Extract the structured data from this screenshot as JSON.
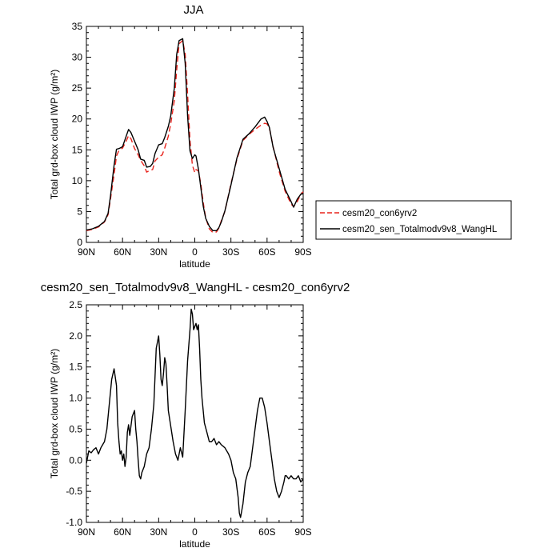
{
  "chart_data": [
    {
      "type": "line",
      "title": "JJA",
      "xlabel": "latitude",
      "ylabel": "Total grd-box cloud IWP (g/m²)",
      "ylim": [
        0,
        35
      ],
      "xlim": [
        90,
        -90
      ],
      "x_ticks": [
        90,
        60,
        30,
        0,
        -30,
        -60,
        -90
      ],
      "x_tick_labels": [
        "90N",
        "60N",
        "30N",
        "0",
        "30S",
        "60S",
        "90S"
      ],
      "y_ticks": [
        0,
        5,
        10,
        15,
        20,
        25,
        30,
        35
      ],
      "y_tick_labels": [
        "0",
        "5",
        "10",
        "15",
        "20",
        "25",
        "30",
        "35"
      ],
      "legend_position": "right",
      "grid": false,
      "series": [
        {
          "name": "cesm20_con6yrv2",
          "color": "#e8231c",
          "dash": "dashed",
          "x": [
            90,
            85,
            80,
            75,
            72,
            70,
            67,
            65,
            63,
            60,
            57,
            55,
            53,
            50,
            47,
            45,
            42,
            40,
            37,
            35,
            33,
            30,
            27,
            25,
            22,
            20,
            17,
            15,
            13,
            10,
            8,
            6,
            4,
            2,
            0,
            -1,
            -3,
            -5,
            -7,
            -9,
            -12,
            -15,
            -18,
            -20,
            -22,
            -25,
            -30,
            -35,
            -40,
            -45,
            -50,
            -55,
            -58,
            -60,
            -62,
            -65,
            -70,
            -75,
            -80,
            -82,
            -85,
            -88,
            -90
          ],
          "y": [
            1.9,
            2.1,
            2.5,
            3.3,
            4.5,
            7,
            11,
            14,
            14.9,
            15.3,
            16.4,
            17.3,
            16.8,
            15.2,
            14.2,
            13.3,
            12.4,
            11.4,
            11.7,
            11.8,
            13.2,
            13.8,
            14.2,
            15.3,
            17.2,
            19.2,
            23,
            28,
            32.2,
            32.7,
            30.5,
            24,
            16.5,
            12.5,
            11.3,
            11.8,
            11.6,
            9.5,
            6.5,
            4,
            2.2,
            1.6,
            1.7,
            2.3,
            3.5,
            5,
            9.5,
            13.5,
            16.5,
            17.5,
            18.3,
            19,
            19.3,
            19.2,
            18.5,
            15.5,
            11.5,
            8.3,
            6.2,
            5.8,
            6.6,
            7.8,
            8.2
          ]
        },
        {
          "name": "cesm20_sen_Totalmodv9v8_WangHL",
          "color": "#000000",
          "dash": "solid",
          "x": [
            90,
            85,
            80,
            75,
            72,
            70,
            67,
            65,
            63,
            60,
            57,
            55,
            53,
            50,
            47,
            45,
            42,
            40,
            37,
            35,
            33,
            30,
            27,
            25,
            22,
            20,
            17,
            15,
            13,
            10,
            8,
            6,
            4,
            2,
            0,
            -1,
            -3,
            -5,
            -7,
            -9,
            -12,
            -15,
            -18,
            -20,
            -22,
            -25,
            -30,
            -35,
            -40,
            -45,
            -50,
            -55,
            -58,
            -60,
            -62,
            -65,
            -70,
            -75,
            -80,
            -82,
            -85,
            -88,
            -90
          ],
          "y": [
            2.0,
            2.2,
            2.6,
            3.4,
            4.7,
            7.5,
            12.5,
            15.1,
            15.2,
            15.5,
            17.2,
            18.3,
            17.8,
            16.4,
            15,
            13.5,
            13.3,
            12.2,
            12.3,
            12.8,
            14.4,
            15.8,
            16,
            17,
            18.8,
            20.5,
            25,
            30.5,
            32.7,
            33,
            29,
            20.5,
            14.8,
            13.6,
            14.2,
            14,
            11.9,
            8.9,
            5.9,
            3.9,
            2.6,
            1.9,
            1.9,
            2.4,
            3.3,
            5.1,
            9.3,
            13.7,
            16.7,
            17.6,
            18.7,
            20,
            20.3,
            19.6,
            18.6,
            15.4,
            12,
            8.6,
            6.6,
            5.7,
            7,
            7.8,
            7.9
          ]
        }
      ]
    },
    {
      "type": "line",
      "title": "cesm20_sen_Totalmodv9v8_WangHL - cesm20_con6yrv2",
      "xlabel": "latitude",
      "ylabel": "Total grd-box cloud IWP (g/m²)",
      "ylim": [
        -1.0,
        2.5
      ],
      "xlim": [
        90,
        -90
      ],
      "x_ticks": [
        90,
        60,
        30,
        0,
        -30,
        -60,
        -90
      ],
      "x_tick_labels": [
        "90N",
        "60N",
        "30N",
        "0",
        "30S",
        "60S",
        "90S"
      ],
      "y_ticks": [
        -1.0,
        -0.5,
        0.0,
        0.5,
        1.0,
        1.5,
        2.0,
        2.5
      ],
      "y_tick_labels": [
        "-1.0",
        "-0.5",
        "0.0",
        "0.5",
        "1.0",
        "1.5",
        "2.0",
        "2.5"
      ],
      "grid": false,
      "series": [
        {
          "color": "#000000",
          "dash": "solid",
          "x": [
            90,
            88,
            86,
            84,
            82,
            80,
            78,
            75,
            73,
            71,
            69,
            67,
            65,
            64,
            63,
            62,
            61,
            60,
            59,
            58,
            57,
            56,
            55,
            54,
            52,
            50,
            49,
            48,
            47,
            46,
            45,
            44,
            42,
            40,
            38,
            36,
            34,
            32,
            30,
            29,
            28,
            27,
            26,
            25,
            24,
            23,
            22,
            20,
            18,
            16,
            14,
            12,
            10,
            8,
            6,
            4,
            3,
            2,
            1,
            0,
            -1,
            -2,
            -3,
            -4,
            -5,
            -6,
            -8,
            -10,
            -12,
            -14,
            -16,
            -18,
            -20,
            -22,
            -25,
            -28,
            -30,
            -32,
            -34,
            -36,
            -37,
            -38,
            -40,
            -42,
            -44,
            -46,
            -48,
            -50,
            -52,
            -54,
            -56,
            -58,
            -60,
            -62,
            -64,
            -66,
            -68,
            -70,
            -72,
            -74,
            -75,
            -76,
            -78,
            -80,
            -82,
            -84,
            -86,
            -88,
            -90
          ],
          "y": [
            -0.05,
            0.15,
            0.12,
            0.17,
            0.2,
            0.1,
            0.2,
            0.3,
            0.5,
            0.9,
            1.3,
            1.47,
            1.2,
            0.6,
            0.3,
            0.1,
            0.15,
            0.0,
            0.1,
            -0.1,
            0.05,
            0.45,
            0.57,
            0.4,
            0.7,
            0.8,
            0.5,
            0.3,
            0.0,
            -0.25,
            -0.3,
            -0.2,
            -0.1,
            0.1,
            0.2,
            0.5,
            0.9,
            1.8,
            2.0,
            1.7,
            1.3,
            1.2,
            1.4,
            1.65,
            1.55,
            1.2,
            0.8,
            0.55,
            0.3,
            0.1,
            0.0,
            0.2,
            0.05,
            0.8,
            1.6,
            2.1,
            2.43,
            2.35,
            2.1,
            2.15,
            2.2,
            2.1,
            2.18,
            1.8,
            1.3,
            1.0,
            0.6,
            0.45,
            0.3,
            0.3,
            0.35,
            0.25,
            0.3,
            0.25,
            0.2,
            0.1,
            0.0,
            -0.2,
            -0.3,
            -0.6,
            -0.85,
            -0.92,
            -0.7,
            -0.35,
            -0.2,
            -0.1,
            0.2,
            0.5,
            0.8,
            1.0,
            1.0,
            0.85,
            0.6,
            0.3,
            0.0,
            -0.3,
            -0.5,
            -0.6,
            -0.5,
            -0.35,
            -0.25,
            -0.25,
            -0.3,
            -0.25,
            -0.3,
            -0.3,
            -0.25,
            -0.35,
            -0.3
          ]
        }
      ]
    }
  ]
}
